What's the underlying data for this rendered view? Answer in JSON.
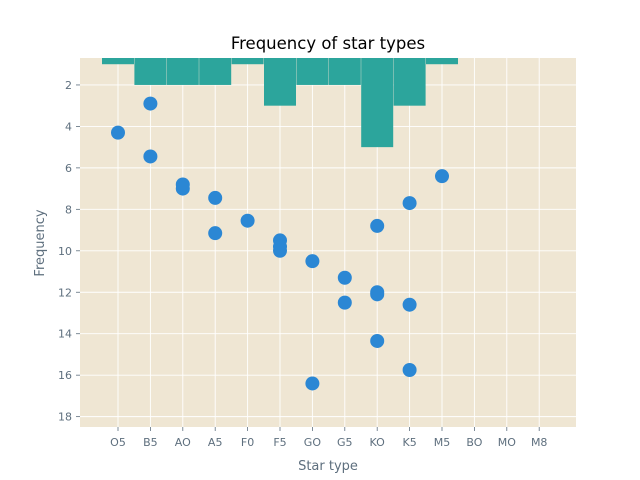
{
  "chart_data": {
    "type": "bar+scatter",
    "title": "Frequency of star types",
    "xlabel": "Star type",
    "ylabel": "Frequency",
    "categories": [
      "O5",
      "B5",
      "AO",
      "A5",
      "F0",
      "F5",
      "GO",
      "G5",
      "KO",
      "K5",
      "M5",
      "BO",
      "MO",
      "M8"
    ],
    "ylim": [
      18.5,
      0.7
    ],
    "y_inverted": true,
    "yticks": [
      2,
      4,
      6,
      8,
      10,
      12,
      14,
      16,
      18
    ],
    "grid": true,
    "bars": {
      "color": "#2ca59c",
      "values": [
        1,
        2,
        2,
        2,
        1,
        3,
        2,
        2,
        5,
        3,
        1,
        0,
        0,
        0
      ]
    },
    "scatter": {
      "color": "#2b87d4",
      "points": [
        {
          "x": "O5",
          "y": 4.3
        },
        {
          "x": "B5",
          "y": 2.9
        },
        {
          "x": "B5",
          "y": 5.45
        },
        {
          "x": "AO",
          "y": 6.8
        },
        {
          "x": "AO",
          "y": 7.0
        },
        {
          "x": "A5",
          "y": 7.45
        },
        {
          "x": "A5",
          "y": 9.15
        },
        {
          "x": "F0",
          "y": 8.55
        },
        {
          "x": "F5",
          "y": 9.5
        },
        {
          "x": "F5",
          "y": 9.8
        },
        {
          "x": "F5",
          "y": 10.0
        },
        {
          "x": "GO",
          "y": 10.5
        },
        {
          "x": "GO",
          "y": 16.4
        },
        {
          "x": "G5",
          "y": 11.3
        },
        {
          "x": "G5",
          "y": 12.5
        },
        {
          "x": "KO",
          "y": 8.8
        },
        {
          "x": "KO",
          "y": 12.0
        },
        {
          "x": "KO",
          "y": 12.1
        },
        {
          "x": "KO",
          "y": 14.35
        },
        {
          "x": "K5",
          "y": 7.7
        },
        {
          "x": "K5",
          "y": 12.6
        },
        {
          "x": "K5",
          "y": 15.75
        },
        {
          "x": "M5",
          "y": 6.4
        }
      ]
    }
  }
}
